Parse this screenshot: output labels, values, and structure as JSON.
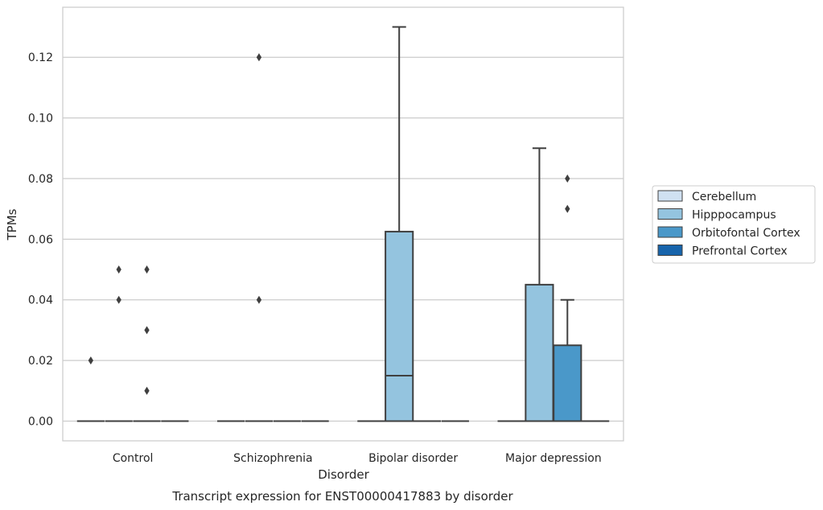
{
  "chart_data": {
    "type": "box",
    "title": "",
    "caption": "Transcript expression for ENST00000417883 by disorder",
    "xlabel": "Disorder",
    "ylabel": "TPMs",
    "ylim": [
      -0.0065,
      0.1365
    ],
    "yticks": [
      "0.00",
      "0.02",
      "0.04",
      "0.06",
      "0.08",
      "0.10",
      "0.12"
    ],
    "grid": "horizontal",
    "legend_placement": "right",
    "categories": [
      "Control",
      "Schizophrenia",
      "Bipolar disorder",
      "Major depression"
    ],
    "series": [
      {
        "name": "Cerebellum",
        "color": "#d0e1f2",
        "boxes": [
          {
            "q1": 0,
            "median": 0,
            "q3": 0,
            "whisker_low": 0,
            "whisker_high": 0,
            "outliers": [
              0.02
            ]
          },
          {
            "q1": 0,
            "median": 0,
            "q3": 0,
            "whisker_low": 0,
            "whisker_high": 0,
            "outliers": []
          },
          {
            "q1": 0,
            "median": 0,
            "q3": 0,
            "whisker_low": 0,
            "whisker_high": 0,
            "outliers": []
          },
          {
            "q1": 0,
            "median": 0,
            "q3": 0,
            "whisker_low": 0,
            "whisker_high": 0,
            "outliers": []
          }
        ]
      },
      {
        "name": "Hipppocampus",
        "color": "#94c4df",
        "boxes": [
          {
            "q1": 0,
            "median": 0,
            "q3": 0,
            "whisker_low": 0,
            "whisker_high": 0,
            "outliers": [
              0.05,
              0.04
            ]
          },
          {
            "q1": 0,
            "median": 0,
            "q3": 0,
            "whisker_low": 0,
            "whisker_high": 0,
            "outliers": [
              0.12,
              0.04
            ]
          },
          {
            "q1": 0,
            "median": 0.015,
            "q3": 0.0625,
            "whisker_low": 0,
            "whisker_high": 0.13,
            "outliers": []
          },
          {
            "q1": 0,
            "median": 0,
            "q3": 0.045,
            "whisker_low": 0,
            "whisker_high": 0.09,
            "outliers": []
          }
        ]
      },
      {
        "name": "Orbitofontal Cortex",
        "color": "#4a98c9",
        "boxes": [
          {
            "q1": 0,
            "median": 0,
            "q3": 0,
            "whisker_low": 0,
            "whisker_high": 0,
            "outliers": [
              0.05,
              0.03,
              0.01
            ]
          },
          {
            "q1": 0,
            "median": 0,
            "q3": 0,
            "whisker_low": 0,
            "whisker_high": 0,
            "outliers": []
          },
          {
            "q1": 0,
            "median": 0,
            "q3": 0,
            "whisker_low": 0,
            "whisker_high": 0,
            "outliers": []
          },
          {
            "q1": 0,
            "median": 0,
            "q3": 0.025,
            "whisker_low": 0,
            "whisker_high": 0.04,
            "outliers": [
              0.08,
              0.07
            ]
          }
        ]
      },
      {
        "name": "Prefrontal Cortex",
        "color": "#1764ab",
        "boxes": [
          {
            "q1": 0,
            "median": 0,
            "q3": 0,
            "whisker_low": 0,
            "whisker_high": 0,
            "outliers": []
          },
          {
            "q1": 0,
            "median": 0,
            "q3": 0,
            "whisker_low": 0,
            "whisker_high": 0,
            "outliers": []
          },
          {
            "q1": 0,
            "median": 0,
            "q3": 0,
            "whisker_low": 0,
            "whisker_high": 0,
            "outliers": []
          },
          {
            "q1": 0,
            "median": 0,
            "q3": 0,
            "whisker_low": 0,
            "whisker_high": 0,
            "outliers": []
          }
        ]
      }
    ],
    "colors": {
      "grid": "#cccccc",
      "frame": "#cccccc",
      "box_edge": "#3f3f3f",
      "text": "#262626"
    }
  }
}
